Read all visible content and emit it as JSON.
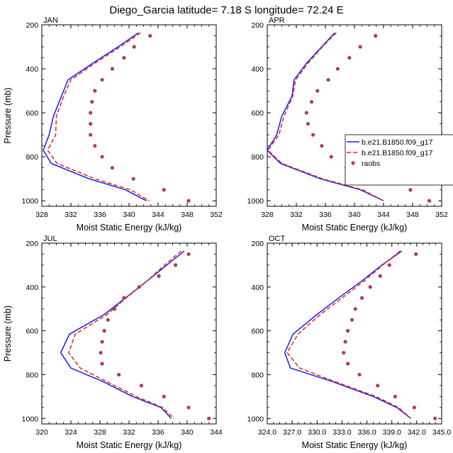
{
  "figure": {
    "title": "Diego_Garcia  latitude= 7.18 S longitude= 72.24 E"
  },
  "legend": {
    "entries": [
      "b.e21.B1850.f09_g17",
      "b.e21.B1850.f09_g17",
      "raobs"
    ],
    "colors": [
      "#1a1aff",
      "#e62222",
      "#b03a5a"
    ]
  },
  "chart_data": [
    {
      "type": "line",
      "panel": "JAN",
      "title": "JAN",
      "xlabel": "Moist Static Energy (kJ/kg)",
      "ylabel": "Pressure (mb)",
      "xlim": [
        328,
        352
      ],
      "ylim": [
        1025,
        200
      ],
      "xticks": [
        "328",
        "332",
        "336",
        "340",
        "344",
        "348",
        "352"
      ],
      "yticks": [
        "200",
        "400",
        "600",
        "800",
        "1000"
      ],
      "series": [
        {
          "name": "b.e21.B1850.f09_g17",
          "style": "solid",
          "color": "#1a1aff",
          "pressure": [
            236,
            300,
            375,
            450,
            525,
            615,
            700,
            770,
            830,
            900,
            950,
            1000
          ],
          "values": [
            341.3,
            338.5,
            335.0,
            331.6,
            330.7,
            329.6,
            329.0,
            328.2,
            329.3,
            334.5,
            339.5,
            342.4
          ]
        },
        {
          "name": "b.e21.B1850.f09_g17",
          "style": "dashed",
          "color": "#e62222",
          "pressure": [
            236,
            300,
            375,
            450,
            525,
            615,
            700,
            770,
            830,
            900,
            950,
            1000
          ],
          "values": [
            341.6,
            338.8,
            335.3,
            332.0,
            331.0,
            330.0,
            329.9,
            328.8,
            330.1,
            335.3,
            340.2,
            342.8
          ]
        },
        {
          "name": "raobs",
          "style": "markers",
          "color": "#b03a5a",
          "pressure": [
            250,
            300,
            350,
            400,
            450,
            500,
            550,
            600,
            650,
            700,
            750,
            800,
            850,
            900,
            950,
            1000
          ],
          "values": [
            342.9,
            340.7,
            339.3,
            337.7,
            336.3,
            335.3,
            334.9,
            334.7,
            334.7,
            334.7,
            335.3,
            336.3,
            337.7,
            340.6,
            344.8,
            348.2
          ]
        }
      ]
    },
    {
      "type": "line",
      "panel": "APR",
      "title": "APR",
      "xlabel": "Moist Static Energy (kJ/kg)",
      "ylabel": "",
      "xlim": [
        328,
        352
      ],
      "ylim": [
        1025,
        200
      ],
      "xticks": [
        "328",
        "332",
        "336",
        "340",
        "344",
        "348",
        "352"
      ],
      "yticks": [
        "200",
        "400",
        "600",
        "800",
        "1000"
      ],
      "series": [
        {
          "name": "b.e21.B1850.f09_g17",
          "style": "solid",
          "color": "#1a1aff",
          "pressure": [
            236,
            300,
            375,
            450,
            525,
            615,
            700,
            770,
            830,
            900,
            950,
            1000
          ],
          "values": [
            337.3,
            335.5,
            333.4,
            331.7,
            331.4,
            330.0,
            329.3,
            328.0,
            329.8,
            335.3,
            340.8,
            344.0
          ]
        },
        {
          "name": "b.e21.B1850.f09_g17",
          "style": "dashed",
          "color": "#e62222",
          "pressure": [
            236,
            300,
            375,
            450,
            525,
            615,
            700,
            770,
            830,
            900,
            950,
            1000
          ],
          "values": [
            337.5,
            335.6,
            333.6,
            331.9,
            331.5,
            330.3,
            329.6,
            328.1,
            330.0,
            335.6,
            341.1,
            344.0
          ]
        },
        {
          "name": "raobs",
          "style": "markers",
          "color": "#b03a5a",
          "pressure": [
            250,
            300,
            350,
            400,
            450,
            500,
            550,
            600,
            650,
            700,
            750,
            800,
            850,
            900,
            950,
            1000
          ],
          "values": [
            342.9,
            340.8,
            339.3,
            337.7,
            336.4,
            334.9,
            334.1,
            333.4,
            333.6,
            334.3,
            335.5,
            336.8,
            338.9,
            342.9,
            347.7,
            350.3
          ]
        }
      ]
    },
    {
      "type": "line",
      "panel": "JUL",
      "title": "JUL",
      "xlabel": "Moist Static Energy (kJ/kg)",
      "ylabel": "Pressure (mb)",
      "xlim": [
        320,
        344
      ],
      "ylim": [
        1025,
        200
      ],
      "xticks": [
        "320",
        "324",
        "328",
        "332",
        "336",
        "340",
        "344"
      ],
      "yticks": [
        "200",
        "400",
        "600",
        "800",
        "1000"
      ],
      "series": [
        {
          "name": "b.e21.B1850.f09_g17",
          "style": "solid",
          "color": "#1a1aff",
          "pressure": [
            236,
            300,
            375,
            450,
            525,
            615,
            700,
            770,
            830,
            900,
            950,
            1000
          ],
          "values": [
            339.6,
            337.2,
            334.4,
            331.5,
            328.6,
            323.8,
            322.6,
            324.0,
            328.3,
            332.5,
            336.4,
            337.8
          ]
        },
        {
          "name": "b.e21.B1850.f09_g17",
          "style": "dashed",
          "color": "#e62222",
          "pressure": [
            236,
            300,
            375,
            450,
            525,
            615,
            700,
            770,
            830,
            900,
            950,
            1000
          ],
          "values": [
            339.2,
            336.9,
            334.4,
            331.6,
            329.0,
            324.6,
            323.7,
            325.3,
            328.8,
            333.0,
            336.6,
            338.2
          ]
        },
        {
          "name": "raobs",
          "style": "markers",
          "color": "#b03a5a",
          "pressure": [
            250,
            300,
            350,
            400,
            450,
            500,
            550,
            600,
            650,
            700,
            750,
            800,
            850,
            900,
            950,
            1000
          ],
          "values": [
            340.2,
            338.4,
            336.1,
            333.4,
            331.3,
            330.0,
            329.1,
            328.6,
            328.3,
            328.1,
            328.3,
            330.6,
            333.7,
            336.8,
            340.2,
            343.0
          ]
        }
      ]
    },
    {
      "type": "line",
      "panel": "OCT",
      "title": "OCT",
      "xlabel": "Moist Static Energy (kJ/kg)",
      "ylabel": "",
      "xlim": [
        324,
        345
      ],
      "ylim": [
        1025,
        200
      ],
      "xticks": [
        "324.0",
        "327.0",
        "330.0",
        "333.0",
        "336.0",
        "339.0",
        "342.0",
        "345.0"
      ],
      "yticks": [
        "200",
        "400",
        "600",
        "800",
        "1000"
      ],
      "series": [
        {
          "name": "b.e21.B1850.f09_g17",
          "style": "solid",
          "color": "#1a1aff",
          "pressure": [
            236,
            300,
            375,
            450,
            525,
            615,
            700,
            770,
            830,
            900,
            950,
            1000
          ],
          "values": [
            340.2,
            337.8,
            335.3,
            332.6,
            330.0,
            327.1,
            326.1,
            326.8,
            331.7,
            336.8,
            339.6,
            341.3
          ]
        },
        {
          "name": "b.e21.B1850.f09_g17",
          "style": "dashed",
          "color": "#e62222",
          "pressure": [
            236,
            300,
            375,
            450,
            525,
            615,
            700,
            770,
            830,
            900,
            950,
            1000
          ],
          "values": [
            340.0,
            337.9,
            335.6,
            333.0,
            330.4,
            327.7,
            326.4,
            327.9,
            332.0,
            337.1,
            339.8,
            341.3
          ]
        },
        {
          "name": "raobs",
          "style": "markers",
          "color": "#b03a5a",
          "pressure": [
            250,
            300,
            350,
            400,
            450,
            500,
            550,
            600,
            650,
            700,
            750,
            800,
            850,
            900,
            950,
            1000
          ],
          "values": [
            341.9,
            338.7,
            337.6,
            336.4,
            335.4,
            334.6,
            334.2,
            333.7,
            333.4,
            333.2,
            333.7,
            335.1,
            337.3,
            339.4,
            341.7,
            344.2
          ]
        }
      ]
    }
  ]
}
